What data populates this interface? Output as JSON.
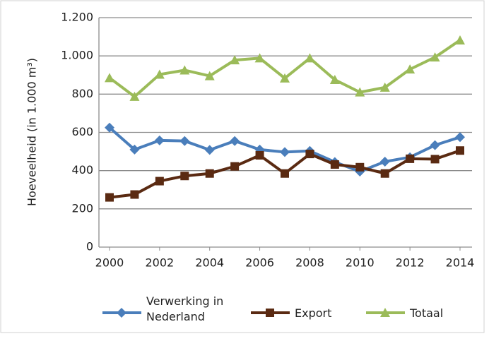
{
  "chart_data": {
    "type": "line",
    "ylabel": "Hoeveelheid (in 1.000  m³)",
    "x": [
      2000,
      2001,
      2002,
      2003,
      2004,
      2005,
      2006,
      2007,
      2008,
      2009,
      2010,
      2011,
      2012,
      2013,
      2014
    ],
    "xlim": [
      2000,
      2014
    ],
    "xticks": [
      2000,
      2002,
      2004,
      2006,
      2008,
      2010,
      2012,
      2014
    ],
    "ylim": [
      0,
      1200
    ],
    "yticks": [
      0,
      200,
      400,
      600,
      800,
      {
        "value": 1000,
        "label": "1.000"
      },
      {
        "value": 1200,
        "label": "1.200"
      }
    ],
    "grid": true,
    "legend": "bottom",
    "series": [
      {
        "name": "Verwerking in Nederland",
        "color": "#4a7ebb",
        "marker": "diamond",
        "values": [
          625,
          510,
          558,
          555,
          508,
          555,
          510,
          497,
          503,
          445,
          395,
          447,
          470,
          533,
          575
        ]
      },
      {
        "name": "Export",
        "color": "#5a2a12",
        "marker": "square",
        "values": [
          260,
          275,
          345,
          372,
          385,
          422,
          480,
          385,
          487,
          432,
          418,
          385,
          462,
          460,
          505
        ]
      },
      {
        "name": "Totaal",
        "color": "#9bbb59",
        "marker": "triangle",
        "values": [
          885,
          787,
          903,
          925,
          895,
          978,
          988,
          883,
          988,
          875,
          810,
          835,
          930,
          993,
          1082
        ]
      }
    ]
  }
}
